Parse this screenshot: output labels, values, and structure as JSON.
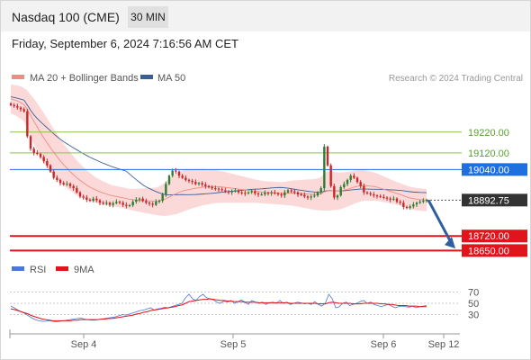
{
  "header": {
    "title": "Nasdaq 100 (CME)",
    "interval": "30 MIN"
  },
  "subheader": {
    "datetime": "Friday, September 6, 2024 7:16:56 AM CET"
  },
  "legend": {
    "ma20": {
      "label": "MA 20 + Bollinger Bands",
      "color": "#f28b82"
    },
    "ma50": {
      "label": "MA 50",
      "color": "#3a5f96"
    },
    "credit": "Research © 2024 Trading Central"
  },
  "colors": {
    "up": "#2e7d32",
    "down": "#c62828",
    "band": "#fbd9d9",
    "resistance": "#8bc34a",
    "pivot": "#1e6fe0",
    "support": "#e0141b",
    "current": "#333333",
    "arrow": "#2f5f9e"
  },
  "chart_data": [
    {
      "type": "candlestick",
      "x_ticks": [
        "Sep 4",
        "Sep 5",
        "Sep 6",
        "Sep 12"
      ],
      "price_range": [
        18630,
        19440
      ],
      "levels": [
        {
          "name": "resistance-2",
          "value": 19220.0,
          "label": "19220.00"
        },
        {
          "name": "resistance-1",
          "value": 19120.0,
          "label": "19120.00"
        },
        {
          "name": "pivot",
          "value": 19040.0,
          "label": "19040.00"
        },
        {
          "name": "support-1",
          "value": 18720.0,
          "label": "18720.00"
        },
        {
          "name": "support-2",
          "value": 18650.0,
          "label": "18650.00"
        }
      ],
      "current_price": {
        "value": 18892.75,
        "label": "18892.75"
      },
      "close": [
        19350,
        19345,
        19338,
        19330,
        19320,
        19200,
        19140,
        19120,
        19115,
        19100,
        19080,
        19060,
        19030,
        19000,
        18990,
        18975,
        18968,
        18972,
        18960,
        18950,
        18930,
        18910,
        18905,
        18895,
        18890,
        18900,
        18892,
        18880,
        18875,
        18880,
        18870,
        18878,
        18885,
        18880,
        18870,
        18865,
        18868,
        18885,
        18895,
        18900,
        18888,
        18880,
        18875,
        18870,
        18885,
        18890,
        18920,
        18970,
        19010,
        19035,
        19030,
        19010,
        19000,
        18990,
        18985,
        18980,
        18970,
        18975,
        18968,
        18960,
        18955,
        18950,
        18948,
        18945,
        18940,
        18935,
        18930,
        18935,
        18938,
        18930,
        18928,
        18925,
        18930,
        18935,
        18925,
        18920,
        18920,
        18928,
        18925,
        18930,
        18925,
        18920,
        18915,
        18930,
        18940,
        18935,
        18930,
        18920,
        18918,
        18910,
        18905,
        18910,
        18915,
        18930,
        18950,
        19150,
        19060,
        18960,
        18905,
        18915,
        18955,
        18970,
        18990,
        19010,
        19000,
        18980,
        18960,
        18930,
        18925,
        18920,
        18915,
        18912,
        18908,
        18905,
        18900,
        18895,
        18900,
        18885,
        18880,
        18860,
        18855,
        18862,
        18872,
        18880,
        18885,
        18890,
        18893
      ],
      "ma20": [
        19380,
        19375,
        19370,
        19362,
        19352,
        19330,
        19300,
        19272,
        19245,
        19218,
        19192,
        19168,
        19145,
        19123,
        19102,
        19082,
        19064,
        19047,
        19030,
        19015,
        19000,
        18988,
        18976,
        18965,
        18955,
        18947,
        18940,
        18933,
        18927,
        18922,
        18917,
        18913,
        18910,
        18907,
        18904,
        18900,
        18897,
        18895,
        18893,
        18892,
        18891,
        18890,
        18889,
        18888,
        18887,
        18889,
        18893,
        18899,
        18907,
        18916,
        18923,
        18930,
        18936,
        18940,
        18944,
        18947,
        18950,
        18952,
        18955,
        18956,
        18957,
        18958,
        18958,
        18957,
        18956,
        18954,
        18952,
        18950,
        18948,
        18946,
        18944,
        18942,
        18940,
        18938,
        18936,
        18934,
        18932,
        18930,
        18929,
        18928,
        18927,
        18926,
        18925,
        18925,
        18926,
        18926,
        18926,
        18925,
        18924,
        18923,
        18922,
        18921,
        18920,
        18921,
        18923,
        18932,
        18937,
        18938,
        18937,
        18936,
        18938,
        18941,
        18945,
        18950,
        18955,
        18959,
        18962,
        18963,
        18962,
        18960,
        18958,
        18955,
        18950,
        18945,
        18940,
        18935,
        18930,
        18925,
        18920,
        18914,
        18908,
        18903,
        18900,
        18897,
        18895,
        18894,
        18893
      ],
      "bb_width": [
        70,
        72,
        75,
        78,
        80,
        90,
        100,
        110,
        115,
        118,
        120,
        118,
        115,
        112,
        110,
        105,
        100,
        96,
        92,
        88,
        84,
        80,
        76,
        72,
        68,
        64,
        60,
        58,
        56,
        54,
        52,
        50,
        50,
        50,
        50,
        50,
        50,
        52,
        54,
        56,
        58,
        60,
        62,
        64,
        66,
        70,
        76,
        82,
        88,
        94,
        98,
        100,
        100,
        98,
        96,
        94,
        92,
        90,
        88,
        86,
        84,
        82,
        80,
        78,
        76,
        74,
        72,
        70,
        68,
        66,
        64,
        62,
        60,
        58,
        56,
        55,
        54,
        54,
        54,
        54,
        54,
        54,
        54,
        56,
        58,
        60,
        62,
        64,
        66,
        68,
        70,
        72,
        74,
        76,
        80,
        90,
        95,
        95,
        92,
        90,
        88,
        86,
        84,
        82,
        80,
        78,
        76,
        74,
        72,
        70,
        68,
        66,
        64,
        62,
        60,
        58,
        56,
        55,
        54,
        54,
        54,
        54,
        54,
        54,
        54,
        54,
        54
      ]
    },
    {
      "type": "line",
      "name": "RSI",
      "ticks": [
        70,
        50,
        30
      ],
      "range": [
        10,
        90
      ],
      "series": [
        {
          "name": "RSI",
          "color": "#4a78d4",
          "values": [
            45,
            42,
            38,
            35,
            32,
            28,
            24,
            21,
            19,
            18,
            18,
            19,
            18,
            17,
            18,
            19,
            20,
            21,
            22,
            23,
            24,
            22,
            21,
            20,
            20,
            21,
            22,
            23,
            24,
            25,
            26,
            28,
            30,
            29,
            31,
            33,
            35,
            37,
            38,
            40,
            42,
            38,
            40,
            41,
            43,
            42,
            44,
            46,
            48,
            50,
            60,
            66,
            58,
            55,
            62,
            66,
            60,
            58,
            56,
            52,
            50,
            54,
            52,
            55,
            50,
            53,
            56,
            52,
            48,
            55,
            52,
            50,
            52,
            48,
            51,
            52,
            50,
            55,
            50,
            52,
            48,
            50,
            52,
            51,
            49,
            50,
            48,
            53,
            48,
            45,
            50,
            66,
            58,
            42,
            44,
            50,
            52,
            46,
            48,
            50,
            53,
            55,
            50,
            52,
            48,
            46,
            44,
            46,
            48,
            45,
            42,
            44,
            45,
            44,
            43,
            45,
            42,
            44,
            45,
            46
          ]
        },
        {
          "name": "9MA",
          "color": "#e0141b",
          "values": [
            40,
            39,
            37,
            35,
            33,
            31,
            28,
            26,
            24,
            22,
            21,
            20,
            19,
            19,
            19,
            19,
            19,
            19,
            20,
            20,
            21,
            21,
            21,
            21,
            21,
            21,
            22,
            22,
            23,
            23,
            24,
            25,
            26,
            27,
            28,
            29,
            31,
            32,
            34,
            35,
            37,
            38,
            39,
            40,
            41,
            42,
            43,
            44,
            46,
            47,
            50,
            53,
            54,
            55,
            56,
            57,
            57,
            58,
            57,
            56,
            55,
            55,
            54,
            54,
            53,
            53,
            53,
            52,
            52,
            52,
            52,
            51,
            51,
            51,
            51,
            51,
            51,
            51,
            51,
            51,
            50,
            50,
            50,
            50,
            50,
            50,
            50,
            50,
            49,
            49,
            49,
            51,
            52,
            51,
            50,
            50,
            50,
            50,
            49,
            49,
            49,
            50,
            50,
            50,
            50,
            50,
            49,
            49,
            48,
            48,
            47,
            46,
            46,
            46,
            45,
            45,
            45,
            44,
            44,
            44
          ]
        }
      ]
    }
  ]
}
